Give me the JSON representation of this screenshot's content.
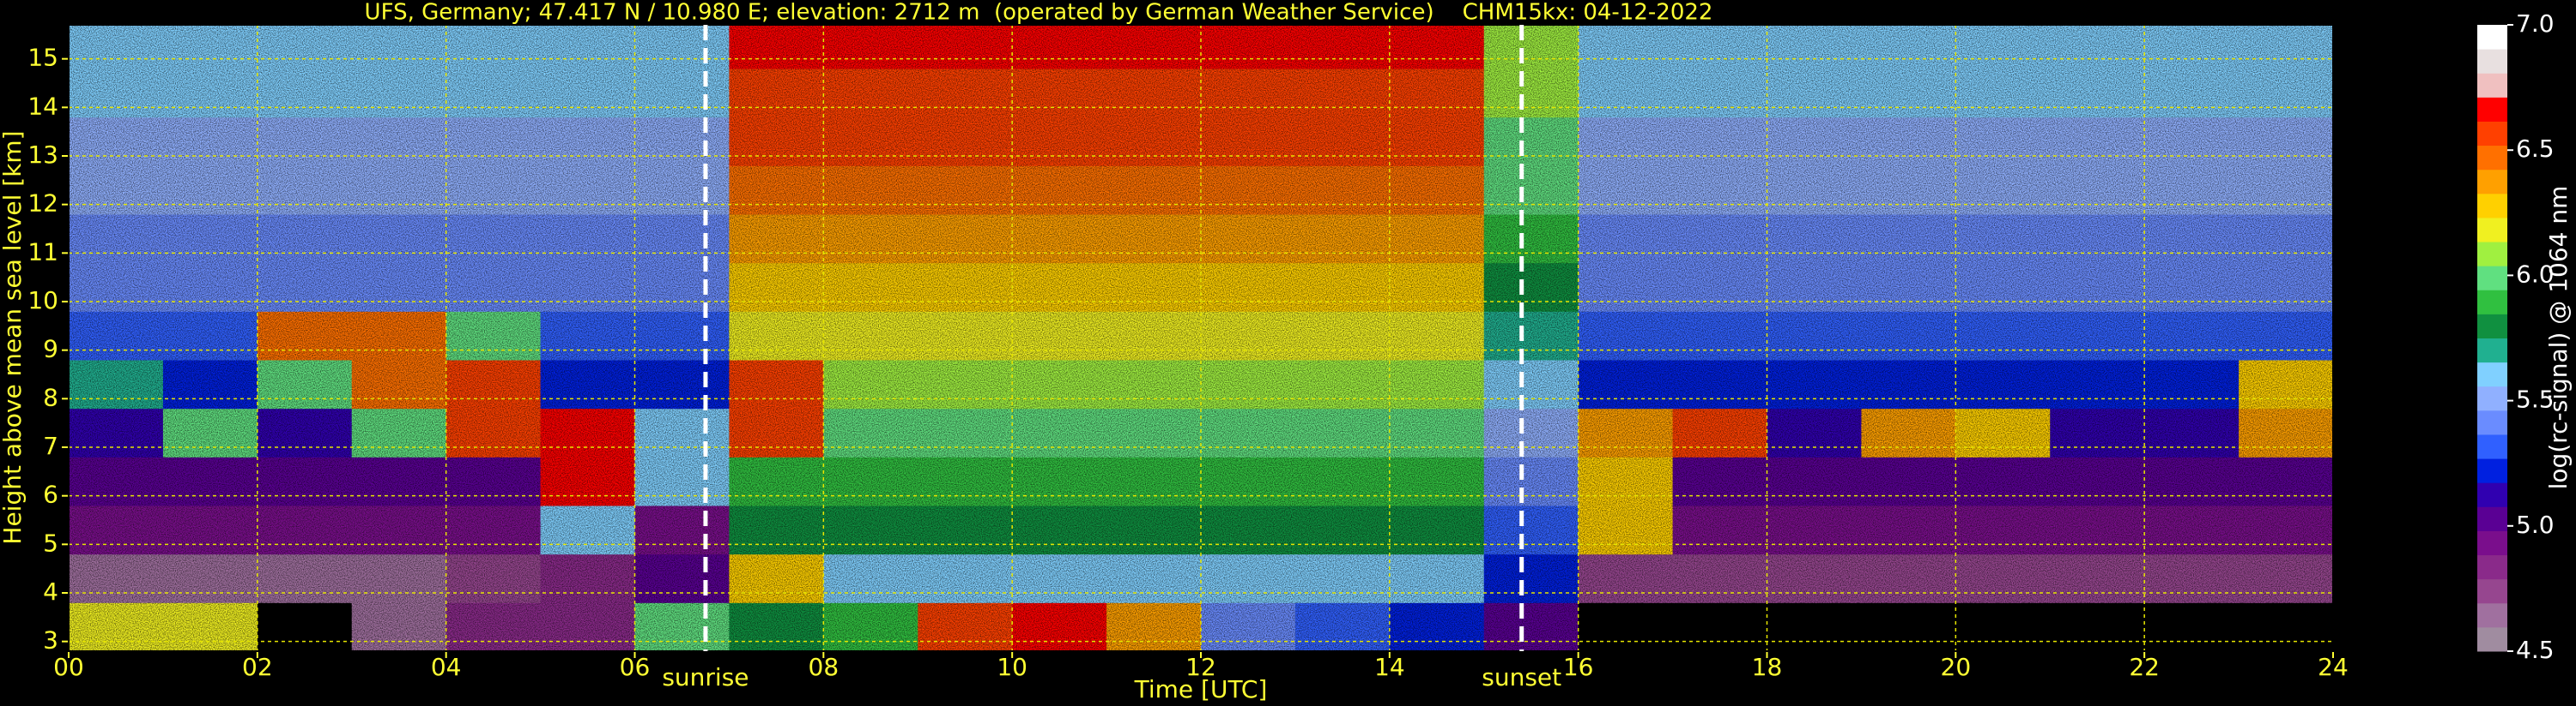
{
  "chart_data": {
    "type": "heatmap",
    "title": "UFS, Germany; 47.417 N / 10.980 E; elevation: 2712 m  (operated by German Weather Service)    CHM15kx: 04-12-2022",
    "x_label": "Time [UTC]",
    "y_label": "Height above mean sea level [km]",
    "colorbar_label": "log(rc-signal) @ 1064 nm",
    "xlim": [
      0,
      24
    ],
    "ylim": [
      2.8,
      15.7
    ],
    "xticks": [
      {
        "value": 0,
        "label": "00"
      },
      {
        "value": 2,
        "label": "02"
      },
      {
        "value": 4,
        "label": "04"
      },
      {
        "value": 6,
        "label": "06"
      },
      {
        "value": 8,
        "label": "08"
      },
      {
        "value": 10,
        "label": "10"
      },
      {
        "value": 12,
        "label": "12"
      },
      {
        "value": 14,
        "label": "14"
      },
      {
        "value": 16,
        "label": "16"
      },
      {
        "value": 18,
        "label": "18"
      },
      {
        "value": 20,
        "label": "20"
      },
      {
        "value": 22,
        "label": "22"
      },
      {
        "value": 24,
        "label": "24"
      }
    ],
    "yticks": [
      3,
      4,
      5,
      6,
      7,
      8,
      9,
      10,
      11,
      12,
      13,
      14,
      15
    ],
    "grid": true,
    "grid_color": "#e6e600",
    "text_color": "#ffff33",
    "clim": [
      4.5,
      7
    ],
    "cticks": [
      4.5,
      {
        "value": 5,
        "label": "5.0"
      },
      5.5,
      {
        "value": 6,
        "label": "6.0"
      },
      6.5,
      {
        "value": 7,
        "label": "7.0"
      }
    ],
    "under_color": "#000000",
    "colormap": [
      "#a08ca0",
      "#a0709f",
      "#96468f",
      "#8a2a8a",
      "#7a0e8c",
      "#5a0094",
      "#3000b0",
      "#0020e0",
      "#3060ff",
      "#6a8cff",
      "#90b0ff",
      "#80d0ff",
      "#20b090",
      "#109040",
      "#30c040",
      "#60e080",
      "#a0f040",
      "#f0f020",
      "#ffd000",
      "#ffa000",
      "#ff7000",
      "#ff4000",
      "#ff0000",
      "#f0c0c0",
      "#e8e0e0",
      "#ffffff"
    ],
    "vlines": [
      {
        "x": 6.75,
        "label": "sunrise"
      },
      {
        "x": 15.4,
        "label": "sunset"
      }
    ],
    "x_bins": [
      0,
      1,
      2,
      3,
      4,
      5,
      6,
      7,
      8,
      9,
      10,
      11,
      12,
      13,
      14,
      15,
      16,
      17,
      18,
      19,
      20,
      21,
      22,
      23,
      24
    ],
    "y_bins": [
      2.8,
      3.8,
      4.8,
      5.8,
      6.8,
      7.8,
      8.8,
      9.8,
      10.8,
      11.8,
      12.8,
      13.8,
      14.8,
      15.7
    ],
    "z": [
      [
        6.2,
        6.2,
        4.3,
        4.6,
        4.8,
        4.8,
        6.0,
        5.8,
        5.9,
        6.6,
        6.7,
        6.4,
        5.4,
        5.3,
        5.2,
        5.0,
        4.3,
        4.3,
        4.3,
        4.3,
        4.3,
        4.3,
        4.3,
        4.3
      ],
      [
        4.6,
        4.6,
        4.6,
        4.6,
        4.7,
        4.8,
        5.0,
        6.3,
        5.6,
        5.6,
        5.6,
        5.6,
        5.6,
        5.6,
        5.6,
        5.2,
        4.7,
        4.7,
        4.7,
        4.7,
        4.7,
        4.7,
        4.7,
        4.7
      ],
      [
        4.9,
        4.9,
        4.9,
        4.9,
        4.9,
        5.6,
        4.9,
        5.8,
        5.8,
        5.8,
        5.8,
        5.8,
        5.8,
        5.8,
        5.8,
        5.3,
        6.3,
        4.9,
        4.9,
        4.9,
        4.9,
        4.9,
        4.9,
        4.9
      ],
      [
        5.0,
        5.0,
        5.0,
        5.0,
        5.0,
        6.7,
        5.6,
        5.9,
        5.9,
        5.9,
        5.9,
        5.9,
        5.9,
        5.9,
        5.9,
        5.4,
        6.3,
        5.0,
        5.0,
        5.0,
        5.0,
        5.0,
        5.0,
        5.0
      ],
      [
        5.1,
        6.0,
        5.1,
        6.0,
        6.6,
        6.7,
        5.6,
        6.6,
        6.0,
        6.0,
        6.0,
        6.0,
        6.0,
        6.0,
        6.0,
        5.5,
        6.4,
        6.6,
        5.1,
        6.4,
        6.3,
        5.1,
        5.1,
        6.4
      ],
      [
        5.7,
        5.2,
        6.0,
        6.5,
        6.6,
        5.2,
        5.2,
        6.6,
        6.1,
        6.1,
        6.1,
        6.1,
        6.1,
        6.1,
        6.1,
        5.6,
        5.2,
        5.2,
        5.2,
        5.2,
        5.2,
        5.2,
        5.2,
        6.3
      ],
      [
        5.3,
        5.3,
        6.5,
        6.5,
        6.0,
        5.3,
        5.3,
        6.2,
        6.2,
        6.2,
        6.2,
        6.2,
        6.2,
        6.2,
        6.2,
        5.7,
        5.3,
        5.3,
        5.3,
        5.3,
        5.3,
        5.3,
        5.3,
        5.3
      ],
      [
        5.4,
        5.4,
        5.4,
        5.4,
        5.4,
        5.4,
        5.4,
        6.3,
        6.3,
        6.3,
        6.3,
        6.3,
        6.3,
        6.3,
        6.3,
        5.8,
        5.4,
        5.4,
        5.4,
        5.4,
        5.4,
        5.4,
        5.4,
        5.4
      ],
      [
        5.4,
        5.4,
        5.4,
        5.4,
        5.4,
        5.4,
        5.4,
        6.4,
        6.4,
        6.4,
        6.4,
        6.4,
        6.4,
        6.4,
        6.4,
        5.9,
        5.4,
        5.4,
        5.4,
        5.4,
        5.4,
        5.4,
        5.4,
        5.4
      ],
      [
        5.5,
        5.5,
        5.5,
        5.5,
        5.5,
        5.5,
        5.5,
        6.5,
        6.5,
        6.5,
        6.5,
        6.5,
        6.5,
        6.5,
        6.5,
        6.0,
        5.5,
        5.5,
        5.5,
        5.5,
        5.5,
        5.5,
        5.5,
        5.5
      ],
      [
        5.5,
        5.5,
        5.5,
        5.5,
        5.5,
        5.5,
        5.5,
        6.6,
        6.6,
        6.6,
        6.6,
        6.6,
        6.6,
        6.6,
        6.6,
        6.0,
        5.5,
        5.5,
        5.5,
        5.5,
        5.5,
        5.5,
        5.5,
        5.5
      ],
      [
        5.6,
        5.6,
        5.6,
        5.6,
        5.6,
        5.6,
        5.6,
        6.6,
        6.6,
        6.6,
        6.6,
        6.6,
        6.6,
        6.6,
        6.6,
        6.1,
        5.6,
        5.6,
        5.6,
        5.6,
        5.6,
        5.6,
        5.6,
        5.6
      ],
      [
        5.6,
        5.6,
        5.6,
        5.6,
        5.6,
        5.6,
        5.6,
        6.7,
        6.7,
        6.7,
        6.7,
        6.7,
        6.7,
        6.7,
        6.7,
        6.1,
        5.6,
        5.6,
        5.6,
        5.6,
        5.6,
        5.6,
        5.6,
        5.6
      ]
    ]
  }
}
